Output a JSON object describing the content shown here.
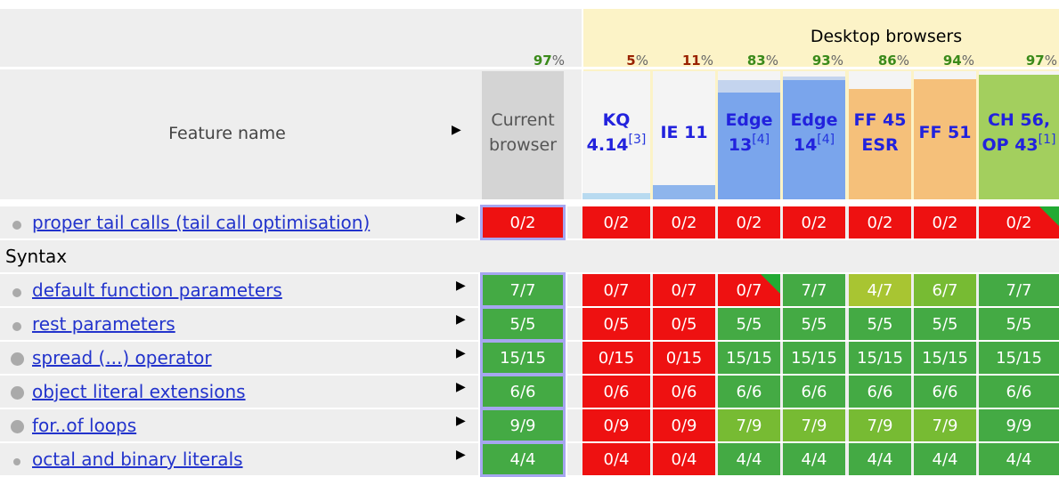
{
  "header": {
    "group_title": "Desktop browsers",
    "feature_name_label": "Feature name",
    "expand_glyph": "▶",
    "current_browser": {
      "label_line1": "Current",
      "label_line2": "browser",
      "pct": "97",
      "pct_color": "#3a8a1a"
    },
    "columns": [
      {
        "id": "kq",
        "line1": "KQ",
        "line2": "4.14",
        "note": "[3]",
        "pct": "5",
        "pct_color": "#992200",
        "bar_color": "#b8daf0",
        "bar_fraction": 0.05,
        "cap_color": "",
        "cap_fraction": 0
      },
      {
        "id": "ie11",
        "line1": "IE 11",
        "line2": "",
        "note": "",
        "pct": "11",
        "pct_color": "#992200",
        "bar_color": "#8eb5ec",
        "bar_fraction": 0.11,
        "cap_color": "",
        "cap_fraction": 0
      },
      {
        "id": "edge13",
        "line1": "Edge",
        "line2": "13",
        "note": "[4]",
        "pct": "83",
        "pct_color": "#3a8a1a",
        "bar_color": "#7aa5ec",
        "bar_fraction": 0.83,
        "cap_color": "#c4d4ee",
        "cap_fraction": 0.93
      },
      {
        "id": "edge14",
        "line1": "Edge",
        "line2": "14",
        "note": "[4]",
        "pct": "93",
        "pct_color": "#3a8a1a",
        "bar_color": "#7aa5ec",
        "bar_fraction": 0.93,
        "cap_color": "#c4d4ee",
        "cap_fraction": 0.96
      },
      {
        "id": "ff45",
        "line1": "FF 45",
        "line2": "ESR",
        "note": "",
        "pct": "86",
        "pct_color": "#3a8a1a",
        "bar_color": "#f5c07a",
        "bar_fraction": 0.86,
        "cap_color": "",
        "cap_fraction": 0
      },
      {
        "id": "ff51",
        "line1": "FF 51",
        "line2": "",
        "note": "",
        "pct": "94",
        "pct_color": "#3a8a1a",
        "bar_color": "#f5c07a",
        "bar_fraction": 0.94,
        "cap_color": "",
        "cap_fraction": 0
      },
      {
        "id": "ch56",
        "line1": "CH 56,",
        "line2": "OP 43",
        "note": "[1]",
        "pct": "97",
        "pct_color": "#3a8a1a",
        "bar_color": "#a3cf5e",
        "bar_fraction": 0.97,
        "cap_color": "",
        "cap_fraction": 0
      }
    ]
  },
  "percent_sign": "%",
  "rows": [
    {
      "kind": "feature",
      "name": "proper tail calls (tail call optimisation)",
      "bullet": "small",
      "current": {
        "text": "0/2",
        "state": "no"
      },
      "cells": [
        {
          "text": "0/2",
          "state": "no"
        },
        {
          "text": "0/2",
          "state": "no"
        },
        {
          "text": "0/2",
          "state": "no"
        },
        {
          "text": "0/2",
          "state": "no"
        },
        {
          "text": "0/2",
          "state": "no"
        },
        {
          "text": "0/2",
          "state": "no"
        },
        {
          "text": "0/2",
          "state": "no",
          "corner": "green"
        }
      ]
    },
    {
      "kind": "section",
      "name": "Syntax"
    },
    {
      "kind": "feature",
      "name": "default function parameters",
      "bullet": "small",
      "current": {
        "text": "7/7",
        "state": "yes"
      },
      "cells": [
        {
          "text": "0/7",
          "state": "no"
        },
        {
          "text": "0/7",
          "state": "no"
        },
        {
          "text": "0/7",
          "state": "no",
          "corner": "green"
        },
        {
          "text": "7/7",
          "state": "yes"
        },
        {
          "text": "4/7",
          "state": "half"
        },
        {
          "text": "6/7",
          "state": "partial"
        },
        {
          "text": "7/7",
          "state": "yes"
        }
      ]
    },
    {
      "kind": "feature",
      "name": "rest parameters",
      "bullet": "small",
      "current": {
        "text": "5/5",
        "state": "yes"
      },
      "cells": [
        {
          "text": "0/5",
          "state": "no"
        },
        {
          "text": "0/5",
          "state": "no"
        },
        {
          "text": "5/5",
          "state": "yes"
        },
        {
          "text": "5/5",
          "state": "yes"
        },
        {
          "text": "5/5",
          "state": "yes"
        },
        {
          "text": "5/5",
          "state": "yes"
        },
        {
          "text": "5/5",
          "state": "yes"
        }
      ]
    },
    {
      "kind": "feature",
      "name": "spread (...) operator",
      "bullet": "large",
      "current": {
        "text": "15/15",
        "state": "yes"
      },
      "cells": [
        {
          "text": "0/15",
          "state": "no"
        },
        {
          "text": "0/15",
          "state": "no"
        },
        {
          "text": "15/15",
          "state": "yes"
        },
        {
          "text": "15/15",
          "state": "yes"
        },
        {
          "text": "15/15",
          "state": "yes"
        },
        {
          "text": "15/15",
          "state": "yes"
        },
        {
          "text": "15/15",
          "state": "yes"
        }
      ]
    },
    {
      "kind": "feature",
      "name": "object literal extensions",
      "bullet": "large",
      "current": {
        "text": "6/6",
        "state": "yes"
      },
      "cells": [
        {
          "text": "0/6",
          "state": "no"
        },
        {
          "text": "0/6",
          "state": "no"
        },
        {
          "text": "6/6",
          "state": "yes"
        },
        {
          "text": "6/6",
          "state": "yes"
        },
        {
          "text": "6/6",
          "state": "yes"
        },
        {
          "text": "6/6",
          "state": "yes"
        },
        {
          "text": "6/6",
          "state": "yes"
        }
      ]
    },
    {
      "kind": "feature",
      "name": "for..of loops",
      "bullet": "large",
      "current": {
        "text": "9/9",
        "state": "yes"
      },
      "cells": [
        {
          "text": "0/9",
          "state": "no"
        },
        {
          "text": "0/9",
          "state": "no"
        },
        {
          "text": "7/9",
          "state": "partial"
        },
        {
          "text": "7/9",
          "state": "partial"
        },
        {
          "text": "7/9",
          "state": "partial"
        },
        {
          "text": "7/9",
          "state": "partial"
        },
        {
          "text": "9/9",
          "state": "yes"
        }
      ]
    },
    {
      "kind": "feature",
      "name": "octal and binary literals",
      "bullet": "tiny",
      "current": {
        "text": "4/4",
        "state": "yes"
      },
      "cells": [
        {
          "text": "0/4",
          "state": "no"
        },
        {
          "text": "0/4",
          "state": "no"
        },
        {
          "text": "4/4",
          "state": "yes"
        },
        {
          "text": "4/4",
          "state": "yes"
        },
        {
          "text": "4/4",
          "state": "yes"
        },
        {
          "text": "4/4",
          "state": "yes"
        },
        {
          "text": "4/4",
          "state": "yes"
        }
      ]
    }
  ],
  "colors": {
    "no": "#ee1111",
    "yes": "#44aa44",
    "partial": "#77bb33",
    "half": "#a8c532",
    "current_outline": "#a6a6f0",
    "corner_green": "#22aa33"
  }
}
